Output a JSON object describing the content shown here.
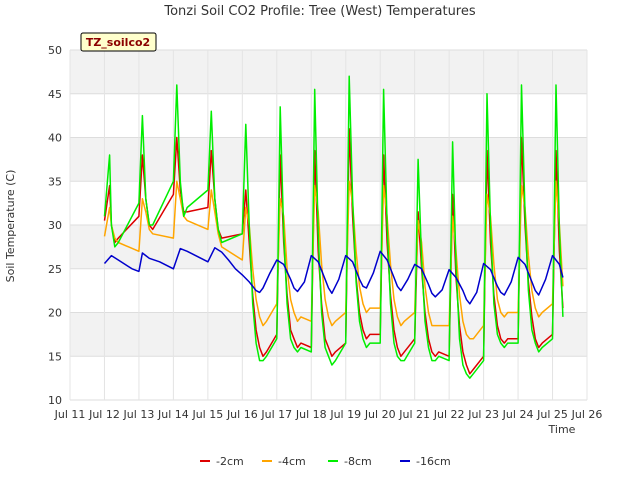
{
  "chart_data": {
    "type": "line",
    "title": "Tonzi Soil CO2 Profile: Tree (West) Temperatures",
    "xlabel": "Time",
    "ylabel": "Soil Temperature (C)",
    "annotation": "TZ_soilco2",
    "x_ticks": [
      "Jul 11",
      "Jul 12",
      "Jul 13",
      "Jul 14",
      "Jul 15",
      "Jul 16",
      "Jul 17",
      "Jul 18",
      "Jul 19",
      "Jul 20",
      "Jul 21",
      "Jul 22",
      "Jul 23",
      "Jul 24",
      "Jul 25",
      "Jul 26"
    ],
    "xlim": [
      11,
      26
    ],
    "ylim": [
      10,
      50
    ],
    "y_ticks": [
      10,
      15,
      20,
      25,
      30,
      35,
      40,
      45,
      50
    ],
    "legend_position": "bottom",
    "series": [
      {
        "name": "-2cm",
        "color": "#dd0000",
        "x": [
          12.0,
          12.15,
          12.2,
          12.3,
          12.4,
          13.0,
          13.1,
          13.2,
          13.3,
          13.4,
          14.0,
          14.1,
          14.2,
          14.3,
          14.4,
          15.0,
          15.1,
          15.2,
          15.3,
          15.4,
          16.0,
          16.1,
          16.2,
          16.3,
          16.4,
          16.5,
          16.6,
          16.7,
          17.0,
          17.1,
          17.2,
          17.3,
          17.4,
          17.5,
          17.6,
          17.7,
          18.0,
          18.1,
          18.2,
          18.3,
          18.4,
          18.5,
          18.6,
          18.7,
          19.0,
          19.1,
          19.2,
          19.3,
          19.4,
          19.5,
          19.6,
          19.7,
          20.0,
          20.1,
          20.2,
          20.3,
          20.4,
          20.5,
          20.6,
          20.7,
          21.0,
          21.1,
          21.2,
          21.3,
          21.4,
          21.5,
          21.6,
          21.7,
          22.0,
          22.1,
          22.2,
          22.3,
          22.4,
          22.5,
          22.6,
          22.7,
          23.0,
          23.1,
          23.2,
          23.3,
          23.4,
          23.5,
          23.6,
          23.7,
          24.0,
          24.1,
          24.2,
          24.3,
          24.4,
          24.5,
          24.6,
          24.7,
          25.0,
          25.1,
          25.2,
          25.3
        ],
        "y": [
          30.5,
          34.5,
          30.0,
          28.0,
          28.5,
          31.0,
          38.0,
          33.0,
          30.0,
          29.5,
          33.5,
          40.0,
          34.0,
          31.5,
          31.5,
          32.0,
          38.5,
          33.0,
          29.5,
          28.5,
          29.0,
          34.0,
          28.0,
          22.0,
          18.0,
          16.0,
          15.0,
          15.5,
          17.5,
          38.0,
          28.0,
          22.0,
          18.0,
          17.0,
          16.0,
          16.5,
          16.0,
          38.5,
          27.0,
          21.0,
          17.0,
          16.0,
          15.0,
          15.5,
          16.5,
          41.0,
          31.0,
          24.0,
          20.0,
          18.0,
          17.0,
          17.5,
          17.5,
          38.0,
          28.0,
          22.0,
          18.0,
          16.0,
          15.0,
          15.5,
          17.0,
          31.5,
          25.0,
          20.0,
          17.0,
          15.5,
          15.0,
          15.5,
          15.0,
          33.5,
          24.0,
          18.5,
          15.5,
          14.0,
          13.0,
          13.5,
          15.0,
          38.5,
          28.0,
          22.0,
          18.5,
          17.0,
          16.5,
          17.0,
          17.0,
          40.0,
          30.0,
          23.5,
          19.5,
          17.0,
          16.0,
          16.5,
          17.5,
          38.5,
          27.0,
          20.5
        ]
      },
      {
        "name": "-4cm",
        "color": "#ffa500",
        "x": [
          12.0,
          12.15,
          12.2,
          12.3,
          12.4,
          13.0,
          13.1,
          13.2,
          13.3,
          13.4,
          14.0,
          14.1,
          14.2,
          14.3,
          14.4,
          15.0,
          15.1,
          15.2,
          15.3,
          15.4,
          16.0,
          16.1,
          16.2,
          16.3,
          16.4,
          16.5,
          16.6,
          16.7,
          17.0,
          17.1,
          17.2,
          17.3,
          17.4,
          17.5,
          17.6,
          17.7,
          18.0,
          18.1,
          18.2,
          18.3,
          18.4,
          18.5,
          18.6,
          18.7,
          19.0,
          19.1,
          19.2,
          19.3,
          19.4,
          19.5,
          19.6,
          19.7,
          20.0,
          20.1,
          20.2,
          20.3,
          20.4,
          20.5,
          20.6,
          20.7,
          21.0,
          21.1,
          21.2,
          21.3,
          21.4,
          21.5,
          21.6,
          21.7,
          22.0,
          22.1,
          22.2,
          22.3,
          22.4,
          22.5,
          22.6,
          22.7,
          23.0,
          23.1,
          23.2,
          23.3,
          23.4,
          23.5,
          23.6,
          23.7,
          24.0,
          24.1,
          24.2,
          24.3,
          24.4,
          24.5,
          24.6,
          24.7,
          25.0,
          25.1,
          25.2,
          25.3
        ],
        "y": [
          28.7,
          32.0,
          30.0,
          28.5,
          28.0,
          27.0,
          33.0,
          31.5,
          29.5,
          29.0,
          28.5,
          35.0,
          33.0,
          31.0,
          30.5,
          29.5,
          34.0,
          31.5,
          29.0,
          27.5,
          26.0,
          32.0,
          30.0,
          25.0,
          21.5,
          19.5,
          18.5,
          19.0,
          21.0,
          33.0,
          31.0,
          25.0,
          21.5,
          20.0,
          19.0,
          19.5,
          19.0,
          34.5,
          31.5,
          25.5,
          21.5,
          19.5,
          18.5,
          19.0,
          20.0,
          35.0,
          32.5,
          27.0,
          23.0,
          21.0,
          20.0,
          20.5,
          20.5,
          34.5,
          31.0,
          25.5,
          21.5,
          19.5,
          18.5,
          19.0,
          20.0,
          30.5,
          28.0,
          23.0,
          20.0,
          18.5,
          18.5,
          18.5,
          18.5,
          31.0,
          27.0,
          22.0,
          19.0,
          17.5,
          17.0,
          17.0,
          18.5,
          33.5,
          31.0,
          25.5,
          21.5,
          20.0,
          19.5,
          20.0,
          20.0,
          34.5,
          32.0,
          26.5,
          22.5,
          20.5,
          19.5,
          20.0,
          21.0,
          35.0,
          30.0,
          23.0
        ]
      },
      {
        "name": "-8cm",
        "color": "#00ee00",
        "x": [
          12.0,
          12.15,
          12.2,
          12.3,
          12.4,
          13.0,
          13.1,
          13.2,
          13.3,
          13.4,
          14.0,
          14.1,
          14.2,
          14.3,
          14.4,
          15.0,
          15.1,
          15.2,
          15.3,
          15.4,
          16.0,
          16.1,
          16.2,
          16.3,
          16.4,
          16.5,
          16.6,
          16.7,
          17.0,
          17.1,
          17.2,
          17.3,
          17.4,
          17.5,
          17.6,
          17.7,
          18.0,
          18.1,
          18.2,
          18.3,
          18.4,
          18.5,
          18.6,
          18.7,
          19.0,
          19.1,
          19.2,
          19.3,
          19.4,
          19.5,
          19.6,
          19.7,
          20.0,
          20.1,
          20.2,
          20.3,
          20.4,
          20.5,
          20.6,
          20.7,
          21.0,
          21.1,
          21.2,
          21.3,
          21.4,
          21.5,
          21.6,
          21.7,
          22.0,
          22.1,
          22.2,
          22.3,
          22.4,
          22.5,
          22.6,
          22.7,
          23.0,
          23.1,
          23.2,
          23.3,
          23.4,
          23.5,
          23.6,
          23.7,
          24.0,
          24.1,
          24.2,
          24.3,
          24.4,
          24.5,
          24.6,
          24.7,
          25.0,
          25.1,
          25.2,
          25.3
        ],
        "y": [
          31.0,
          38.0,
          30.0,
          27.5,
          28.0,
          32.5,
          42.5,
          33.0,
          30.0,
          30.0,
          35.0,
          46.0,
          35.0,
          31.0,
          32.0,
          34.0,
          43.0,
          33.0,
          29.5,
          28.0,
          29.0,
          41.5,
          30.0,
          21.0,
          16.5,
          14.5,
          14.5,
          15.0,
          17.0,
          43.5,
          29.0,
          21.0,
          17.0,
          16.0,
          15.5,
          16.0,
          15.5,
          45.5,
          29.0,
          20.0,
          16.0,
          15.0,
          14.0,
          14.5,
          16.5,
          47.0,
          33.0,
          23.5,
          19.0,
          17.0,
          16.0,
          16.5,
          16.5,
          45.5,
          30.0,
          21.0,
          16.5,
          15.0,
          14.5,
          14.5,
          16.5,
          37.5,
          26.0,
          19.0,
          16.0,
          14.5,
          14.5,
          15.0,
          14.5,
          39.5,
          25.5,
          17.0,
          14.0,
          13.0,
          12.5,
          13.0,
          14.5,
          45.0,
          30.0,
          21.0,
          17.5,
          16.5,
          16.0,
          16.5,
          16.5,
          46.0,
          31.5,
          22.5,
          18.0,
          16.5,
          15.5,
          16.0,
          17.0,
          46.0,
          29.5,
          19.5
        ]
      },
      {
        "name": "-16cm",
        "color": "#0000cc",
        "x": [
          12.0,
          12.2,
          12.4,
          12.6,
          12.8,
          13.0,
          13.1,
          13.2,
          13.3,
          13.6,
          13.8,
          14.0,
          14.2,
          14.4,
          14.6,
          14.8,
          15.0,
          15.2,
          15.4,
          15.6,
          15.8,
          16.0,
          16.2,
          16.4,
          16.5,
          16.6,
          16.8,
          17.0,
          17.2,
          17.4,
          17.5,
          17.6,
          17.8,
          18.0,
          18.2,
          18.4,
          18.5,
          18.6,
          18.8,
          19.0,
          19.2,
          19.4,
          19.5,
          19.6,
          19.8,
          20.0,
          20.2,
          20.4,
          20.5,
          20.6,
          20.8,
          21.0,
          21.2,
          21.4,
          21.5,
          21.6,
          21.8,
          22.0,
          22.2,
          22.4,
          22.5,
          22.6,
          22.8,
          23.0,
          23.2,
          23.4,
          23.5,
          23.6,
          23.8,
          24.0,
          24.2,
          24.4,
          24.5,
          24.6,
          24.8,
          25.0,
          25.2,
          25.3
        ],
        "y": [
          25.6,
          26.5,
          26.0,
          25.5,
          25.0,
          24.7,
          26.8,
          26.5,
          26.2,
          25.8,
          25.4,
          25.0,
          27.3,
          27.0,
          26.6,
          26.2,
          25.8,
          27.4,
          26.9,
          26.0,
          25.0,
          24.3,
          23.5,
          22.5,
          22.3,
          22.8,
          24.5,
          26.0,
          25.5,
          23.8,
          22.8,
          22.4,
          23.5,
          26.5,
          25.8,
          23.8,
          22.8,
          22.2,
          23.8,
          26.5,
          25.8,
          23.8,
          23.0,
          22.8,
          24.5,
          27.0,
          26.0,
          24.0,
          23.0,
          22.5,
          23.8,
          25.5,
          25.0,
          23.2,
          22.2,
          21.8,
          22.6,
          24.9,
          24.0,
          22.5,
          21.5,
          21.0,
          22.3,
          25.6,
          24.9,
          23.0,
          22.3,
          22.0,
          23.5,
          26.3,
          25.5,
          23.5,
          22.5,
          22.0,
          23.8,
          26.5,
          25.5,
          24.0
        ]
      }
    ]
  }
}
